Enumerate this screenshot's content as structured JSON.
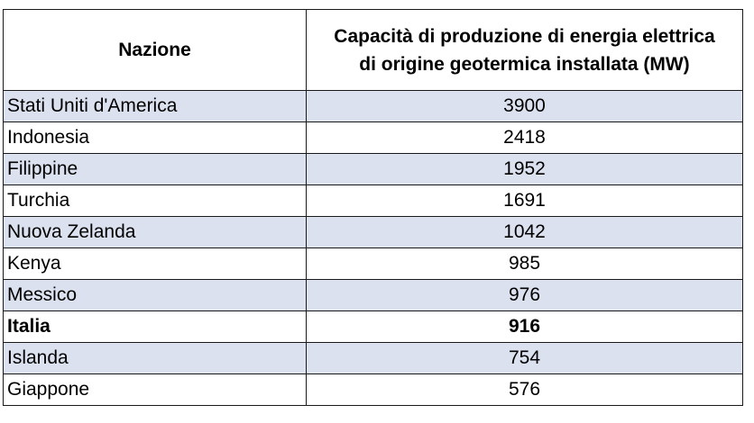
{
  "table": {
    "headers": {
      "country": "Nazione",
      "capacity_line1": "Capacità di produzione di energia elettrica",
      "capacity_line2": "di origine geotermica installata (MW)"
    },
    "rows": [
      {
        "country": "Stati Uniti d'America",
        "capacity": "3900",
        "shaded": true,
        "bold": false
      },
      {
        "country": "Indonesia",
        "capacity": "2418",
        "shaded": false,
        "bold": false
      },
      {
        "country": "Filippine",
        "capacity": "1952",
        "shaded": true,
        "bold": false
      },
      {
        "country": "Turchia",
        "capacity": "1691",
        "shaded": false,
        "bold": false
      },
      {
        "country": "Nuova Zelanda",
        "capacity": "1042",
        "shaded": true,
        "bold": false
      },
      {
        "country": "Kenya",
        "capacity": "985",
        "shaded": false,
        "bold": false
      },
      {
        "country": "Messico",
        "capacity": "976",
        "shaded": true,
        "bold": false
      },
      {
        "country": "Italia",
        "capacity": "916",
        "shaded": false,
        "bold": true
      },
      {
        "country": "Islanda",
        "capacity": "754",
        "shaded": true,
        "bold": false
      },
      {
        "country": "Giappone",
        "capacity": "576",
        "shaded": false,
        "bold": false
      }
    ]
  },
  "colors": {
    "shaded_row": "#dce1f0",
    "plain_row": "#ffffff",
    "border": "#1a1a1a"
  }
}
